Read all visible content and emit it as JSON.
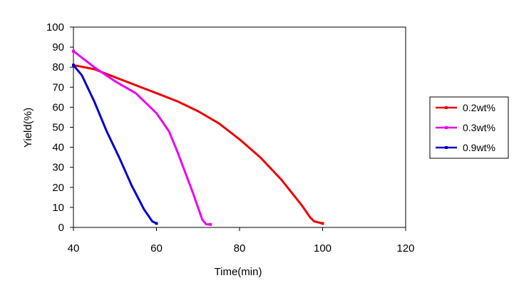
{
  "chart_data": {
    "type": "line",
    "title": "",
    "xlabel": "Time(min)",
    "ylabel": "Yield(%)",
    "xlim": [
      40,
      120
    ],
    "ylim": [
      0,
      100
    ],
    "xticks": [
      40,
      60,
      80,
      100,
      120
    ],
    "yticks": [
      0,
      10,
      20,
      30,
      40,
      50,
      60,
      70,
      80,
      90,
      100
    ],
    "grid": false,
    "legend": "right",
    "series": [
      {
        "name": "0.2wt%",
        "color": "#ee0000",
        "x": [
          40,
          45,
          50,
          55,
          60,
          65,
          70,
          75,
          80,
          85,
          90,
          95,
          97,
          98,
          99,
          100
        ],
        "y": [
          81,
          79,
          75,
          71,
          67,
          63,
          58,
          52,
          44,
          35,
          24,
          11,
          5,
          3,
          2.5,
          2
        ]
      },
      {
        "name": "0.3wt%",
        "color": "#ee00ee",
        "x": [
          40,
          45,
          50,
          55,
          60,
          63,
          65,
          67,
          69,
          71,
          72,
          73
        ],
        "y": [
          88,
          80,
          73,
          67,
          57,
          48,
          38,
          27,
          16,
          4,
          1.5,
          1.5
        ]
      },
      {
        "name": "0.9wt%",
        "color": "#0000cc",
        "x": [
          40,
          42,
          45,
          48,
          51,
          54,
          57,
          59,
          60
        ],
        "y": [
          81,
          76,
          63,
          48,
          35,
          21,
          9,
          3,
          2
        ]
      }
    ]
  }
}
